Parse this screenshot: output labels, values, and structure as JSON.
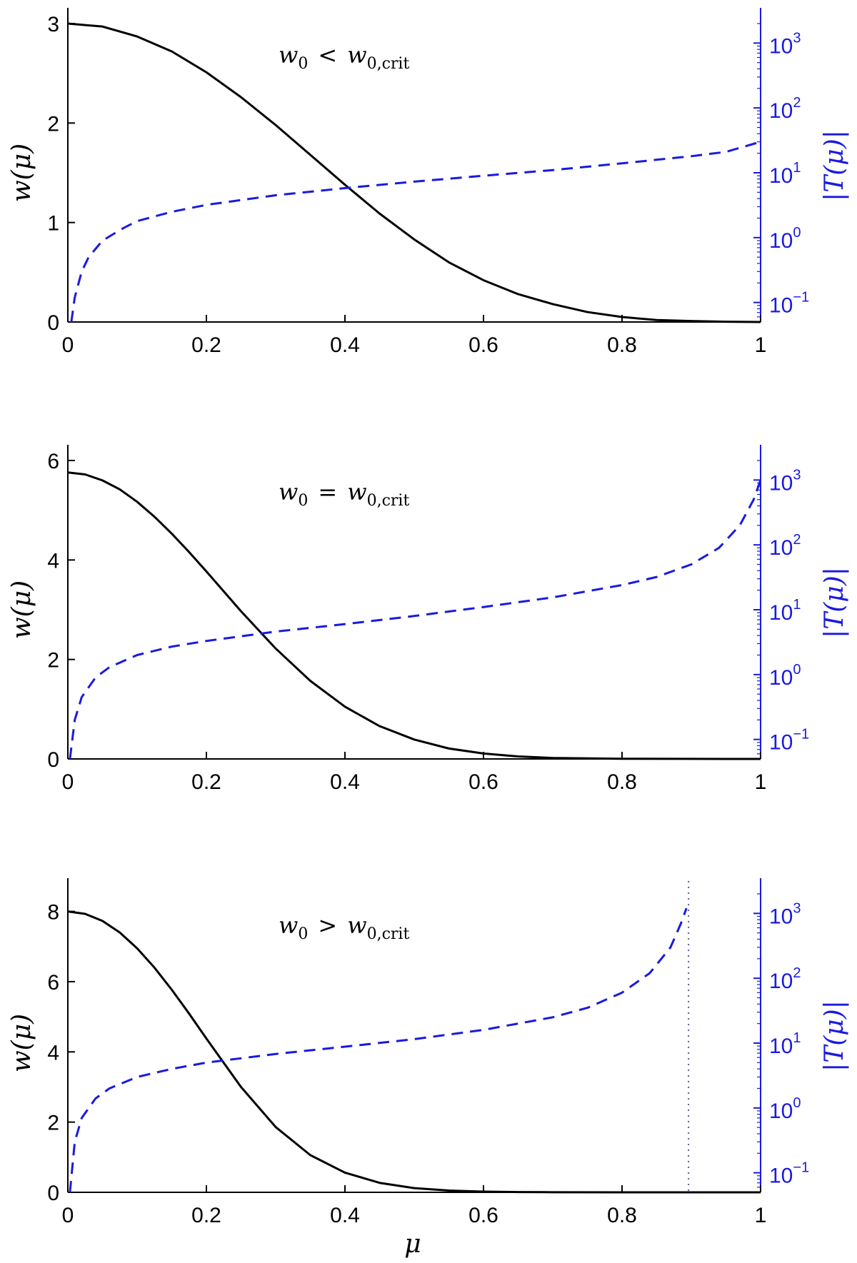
{
  "chart_data": [
    {
      "type": "line",
      "annotation": {
        "lhs": "w",
        "lhs_sub": "0",
        "op": "<",
        "rhs": "w",
        "rhs_sub": "0,crit"
      },
      "xlabel": "",
      "ylabel": "w(μ)",
      "y2label": "|T(μ)|",
      "xlim": [
        0,
        1
      ],
      "xticks": [
        "0",
        "0.2",
        "0.4",
        "0.6",
        "0.8",
        "1"
      ],
      "ylim": [
        0,
        3
      ],
      "yticks": [
        "0",
        "1",
        "2",
        "3"
      ],
      "y2scale": "log",
      "y2lim": [
        0.05,
        2000
      ],
      "y2ticks": [
        {
          "base": "10",
          "exp": "−1"
        },
        {
          "base": "10",
          "exp": "0"
        },
        {
          "base": "10",
          "exp": "1"
        },
        {
          "base": "10",
          "exp": "2"
        },
        {
          "base": "10",
          "exp": "3"
        }
      ],
      "series": [
        {
          "axis": "left",
          "style": "solid",
          "color": "#000000",
          "x": [
            0,
            0.05,
            0.1,
            0.15,
            0.2,
            0.25,
            0.3,
            0.35,
            0.4,
            0.45,
            0.5,
            0.55,
            0.6,
            0.65,
            0.7,
            0.75,
            0.8,
            0.85,
            0.9,
            0.95,
            1.0
          ],
          "y": [
            3.0,
            2.97,
            2.87,
            2.72,
            2.51,
            2.26,
            1.98,
            1.68,
            1.38,
            1.09,
            0.83,
            0.6,
            0.42,
            0.28,
            0.18,
            0.1,
            0.05,
            0.02,
            0.01,
            0.003,
            0.0
          ]
        },
        {
          "axis": "right",
          "style": "dashed",
          "color": "#1a1adf",
          "x": [
            0.005,
            0.01,
            0.02,
            0.03,
            0.05,
            0.08,
            0.1,
            0.15,
            0.2,
            0.3,
            0.4,
            0.5,
            0.6,
            0.7,
            0.8,
            0.9,
            0.95,
            1.0
          ],
          "y": [
            0.05,
            0.12,
            0.3,
            0.5,
            0.9,
            1.4,
            1.8,
            2.5,
            3.2,
            4.5,
            5.8,
            7.3,
            9.0,
            11.0,
            14.0,
            18.0,
            21.0,
            30.0
          ]
        }
      ]
    },
    {
      "type": "line",
      "annotation": {
        "lhs": "w",
        "lhs_sub": "0",
        "op": "=",
        "rhs": "w",
        "rhs_sub": "0,crit"
      },
      "xlabel": "",
      "ylabel": "w(μ)",
      "y2label": "|T(μ)|",
      "xlim": [
        0,
        1
      ],
      "xticks": [
        "0",
        "0.2",
        "0.4",
        "0.6",
        "0.8",
        "1"
      ],
      "ylim": [
        0,
        6
      ],
      "yticks": [
        "0",
        "2",
        "4",
        "6"
      ],
      "y2scale": "log",
      "y2lim": [
        0.05,
        2000
      ],
      "y2ticks": [
        {
          "base": "10",
          "exp": "−1"
        },
        {
          "base": "10",
          "exp": "0"
        },
        {
          "base": "10",
          "exp": "1"
        },
        {
          "base": "10",
          "exp": "2"
        },
        {
          "base": "10",
          "exp": "3"
        }
      ],
      "series": [
        {
          "axis": "left",
          "style": "solid",
          "color": "#000000",
          "x": [
            0,
            0.025,
            0.05,
            0.075,
            0.1,
            0.125,
            0.15,
            0.175,
            0.2,
            0.25,
            0.3,
            0.35,
            0.4,
            0.45,
            0.5,
            0.55,
            0.6,
            0.65,
            0.7,
            0.8,
            0.9,
            1.0
          ],
          "y": [
            5.76,
            5.72,
            5.6,
            5.42,
            5.17,
            4.87,
            4.53,
            4.16,
            3.77,
            2.97,
            2.22,
            1.57,
            1.05,
            0.66,
            0.39,
            0.21,
            0.11,
            0.05,
            0.02,
            0.004,
            0.001,
            0.0
          ]
        },
        {
          "axis": "right",
          "style": "dashed",
          "color": "#1a1adf",
          "x": [
            0.003,
            0.01,
            0.02,
            0.04,
            0.06,
            0.1,
            0.15,
            0.2,
            0.3,
            0.4,
            0.5,
            0.6,
            0.7,
            0.8,
            0.85,
            0.9,
            0.94,
            0.97,
            0.99,
            1.0
          ],
          "y": [
            0.05,
            0.2,
            0.45,
            0.9,
            1.3,
            2.0,
            2.7,
            3.3,
            4.6,
            6.0,
            8.0,
            11.0,
            15.5,
            24.0,
            32.0,
            50.0,
            90.0,
            200.0,
            500.0,
            1000.0
          ]
        }
      ]
    },
    {
      "type": "line",
      "annotation": {
        "lhs": "w",
        "lhs_sub": "0",
        "op": ">",
        "rhs": "w",
        "rhs_sub": "0,crit"
      },
      "xlabel": "μ",
      "ylabel": "w(μ)",
      "y2label": "|T(μ)|",
      "xlim": [
        0,
        1
      ],
      "xticks": [
        "0",
        "0.2",
        "0.4",
        "0.6",
        "0.8",
        "1"
      ],
      "ylim": [
        0,
        8.5
      ],
      "yticks": [
        "0",
        "2",
        "4",
        "6",
        "8"
      ],
      "y2scale": "log",
      "y2lim": [
        0.05,
        2000
      ],
      "y2ticks": [
        {
          "base": "10",
          "exp": "−1"
        },
        {
          "base": "10",
          "exp": "0"
        },
        {
          "base": "10",
          "exp": "1"
        },
        {
          "base": "10",
          "exp": "2"
        },
        {
          "base": "10",
          "exp": "3"
        }
      ],
      "vline": {
        "x": 0.896,
        "style": "dotted",
        "color": "#5a5aa0"
      },
      "series": [
        {
          "axis": "left",
          "style": "solid",
          "color": "#000000",
          "x": [
            0,
            0.025,
            0.05,
            0.075,
            0.1,
            0.125,
            0.15,
            0.175,
            0.2,
            0.25,
            0.3,
            0.35,
            0.4,
            0.45,
            0.5,
            0.55,
            0.6,
            0.65,
            0.7,
            0.8,
            0.9,
            1.0
          ],
          "y": [
            8.0,
            7.93,
            7.73,
            7.4,
            6.95,
            6.4,
            5.77,
            5.09,
            4.38,
            3.0,
            1.86,
            1.06,
            0.56,
            0.27,
            0.12,
            0.05,
            0.02,
            0.008,
            0.003,
            0.0005,
            0.0,
            0.0
          ]
        },
        {
          "axis": "right",
          "style": "dashed",
          "color": "#1a1adf",
          "x": [
            0.003,
            0.01,
            0.02,
            0.04,
            0.06,
            0.1,
            0.15,
            0.2,
            0.3,
            0.4,
            0.5,
            0.6,
            0.7,
            0.75,
            0.8,
            0.84,
            0.87,
            0.885,
            0.893
          ],
          "y": [
            0.05,
            0.3,
            0.7,
            1.4,
            2.0,
            3.0,
            4.0,
            5.0,
            6.8,
            8.8,
            11.5,
            16.0,
            25.0,
            35.0,
            60.0,
            120.0,
            300.0,
            700.0,
            1200.0
          ]
        }
      ]
    }
  ]
}
